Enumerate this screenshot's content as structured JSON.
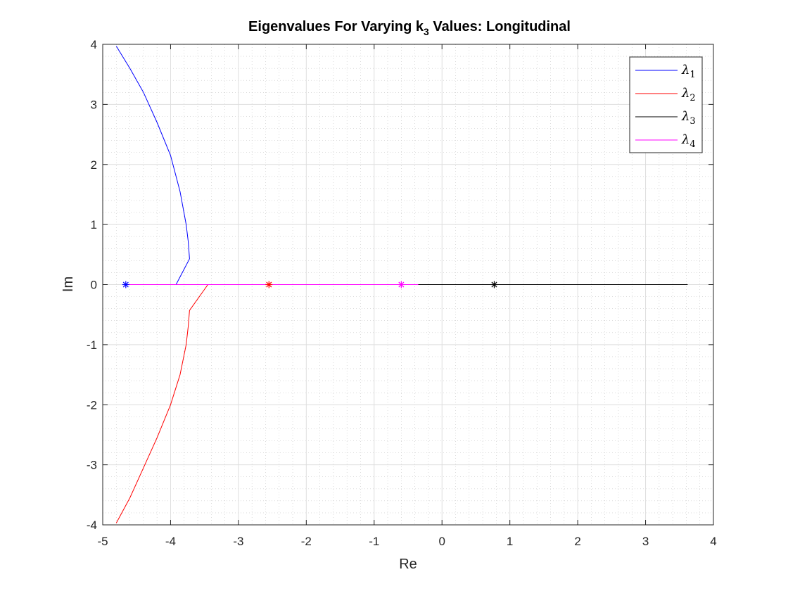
{
  "chart_data": {
    "type": "line",
    "title_main": "Eigenvalues For Varying k",
    "title_sub": "3",
    "title_rest": " Values: Longitudinal",
    "xlabel": "Re",
    "ylabel": "Im",
    "xlim": [
      -5,
      4
    ],
    "ylim": [
      -4,
      4
    ],
    "xticks": [
      "-5",
      "-4",
      "-3",
      "-2",
      "-1",
      "0",
      "1",
      "2",
      "3",
      "4"
    ],
    "yticks": [
      "-4",
      "-3",
      "-2",
      "-1",
      "0",
      "1",
      "2",
      "3",
      "4"
    ],
    "grid": true,
    "minor_grid": true,
    "legend_position": "top-right",
    "series": [
      {
        "name": "λ",
        "sub": "1",
        "color": "#0000ff",
        "points": [
          [
            -4.8,
            3.97
          ],
          [
            -4.6,
            3.6
          ],
          [
            -4.4,
            3.2
          ],
          [
            -4.2,
            2.7
          ],
          [
            -4.0,
            2.15
          ],
          [
            -3.86,
            1.55
          ],
          [
            -3.77,
            1.0
          ],
          [
            -3.74,
            0.72
          ],
          [
            -3.72,
            0.43
          ],
          [
            -3.92,
            0.0
          ]
        ],
        "marker": [
          -4.66,
          0
        ]
      },
      {
        "name": "λ",
        "sub": "2",
        "color": "#ff0000",
        "points": [
          [
            -4.8,
            -3.97
          ],
          [
            -4.6,
            -3.55
          ],
          [
            -4.4,
            -3.05
          ],
          [
            -4.2,
            -2.55
          ],
          [
            -4.0,
            -2.0
          ],
          [
            -3.86,
            -1.5
          ],
          [
            -3.77,
            -1.0
          ],
          [
            -3.74,
            -0.7
          ],
          [
            -3.72,
            -0.43
          ],
          [
            -3.45,
            0.0
          ]
        ],
        "marker": [
          -2.55,
          0
        ]
      },
      {
        "name": "λ",
        "sub": "3",
        "color": "#000000",
        "points": [
          [
            -0.35,
            0.0
          ],
          [
            3.62,
            0.0
          ]
        ],
        "marker": [
          0.77,
          0
        ]
      },
      {
        "name": "λ",
        "sub": "4",
        "color": "#ff00ff",
        "points": [
          [
            -4.66,
            0.0
          ],
          [
            -0.35,
            0.0
          ]
        ],
        "marker": [
          -0.6,
          0
        ]
      }
    ]
  }
}
